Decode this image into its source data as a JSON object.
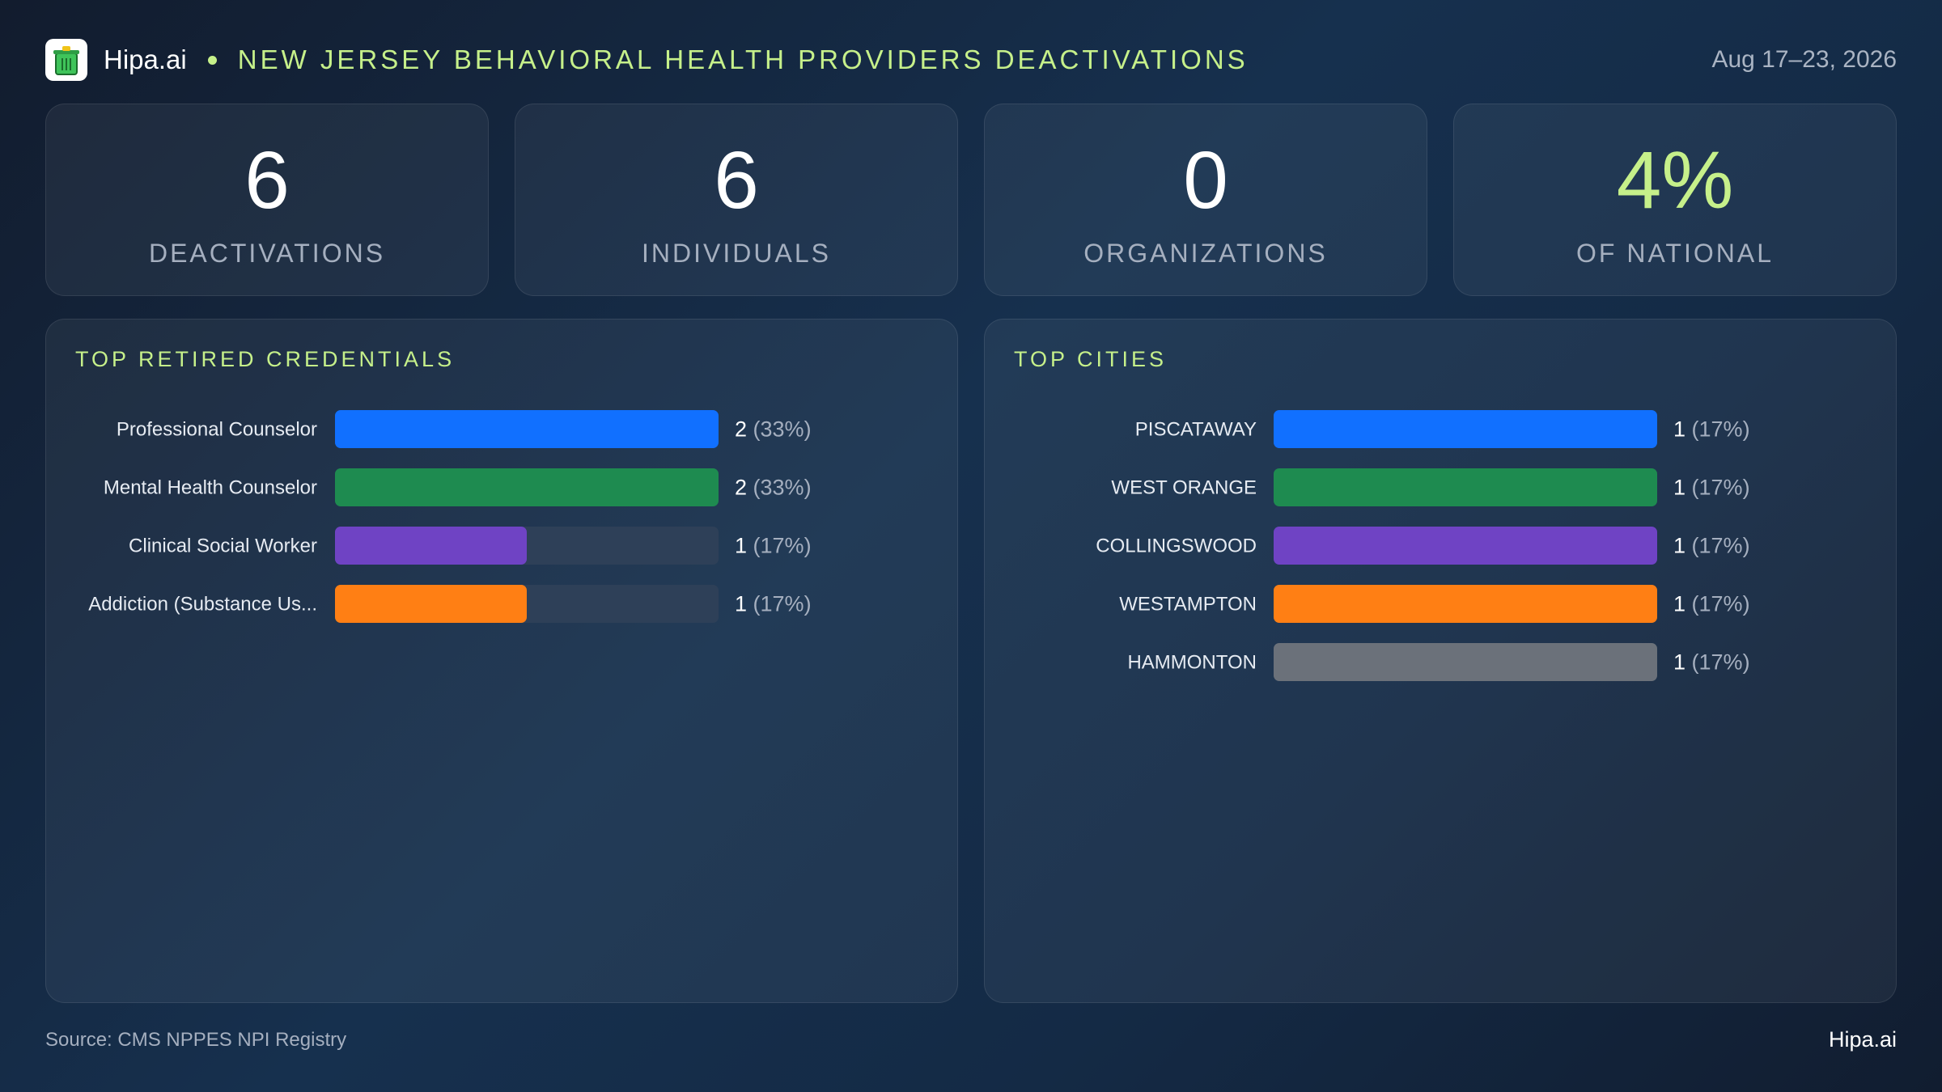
{
  "header": {
    "brand": "Hipa.ai",
    "title": "NEW JERSEY BEHAVIORAL HEALTH PROVIDERS DEACTIVATIONS",
    "date_range": "Aug 17–23, 2026",
    "logo_icon": "trash-can-icon"
  },
  "stats": [
    {
      "value": "6",
      "label": "DEACTIVATIONS"
    },
    {
      "value": "6",
      "label": "INDIVIDUALS"
    },
    {
      "value": "0",
      "label": "ORGANIZATIONS"
    },
    {
      "value": "4%",
      "label": "OF NATIONAL"
    }
  ],
  "colors": {
    "accent": "#c6f08a",
    "track": "#2e4058",
    "bar_palette": [
      "#1170ff",
      "#1e8b50",
      "#6f43c4",
      "#ff7f14",
      "#6b717a"
    ]
  },
  "chart_data": [
    {
      "type": "bar",
      "orientation": "horizontal",
      "title": "TOP RETIRED CREDENTIALS",
      "categories": [
        "Professional Counselor",
        "Mental Health Counselor",
        "Clinical Social Worker",
        "Addiction (Substance Us..."
      ],
      "values": [
        2,
        2,
        1,
        1
      ],
      "value_labels": [
        "2",
        "2",
        "1",
        "1"
      ],
      "percent_labels": [
        "(33%)",
        "(33%)",
        "(17%)",
        "(17%)"
      ],
      "xlim": [
        0,
        2
      ]
    },
    {
      "type": "bar",
      "orientation": "horizontal",
      "title": "TOP CITIES",
      "categories": [
        "PISCATAWAY",
        "WEST ORANGE",
        "COLLINGSWOOD",
        "WESTAMPTON",
        "HAMMONTON"
      ],
      "values": [
        1,
        1,
        1,
        1,
        1
      ],
      "value_labels": [
        "1",
        "1",
        "1",
        "1",
        "1"
      ],
      "percent_labels": [
        "(17%)",
        "(17%)",
        "(17%)",
        "(17%)",
        "(17%)"
      ],
      "xlim": [
        0,
        1
      ]
    }
  ],
  "footer": {
    "source": "Source: CMS NPPES NPI Registry",
    "brand": "Hipa.ai"
  }
}
